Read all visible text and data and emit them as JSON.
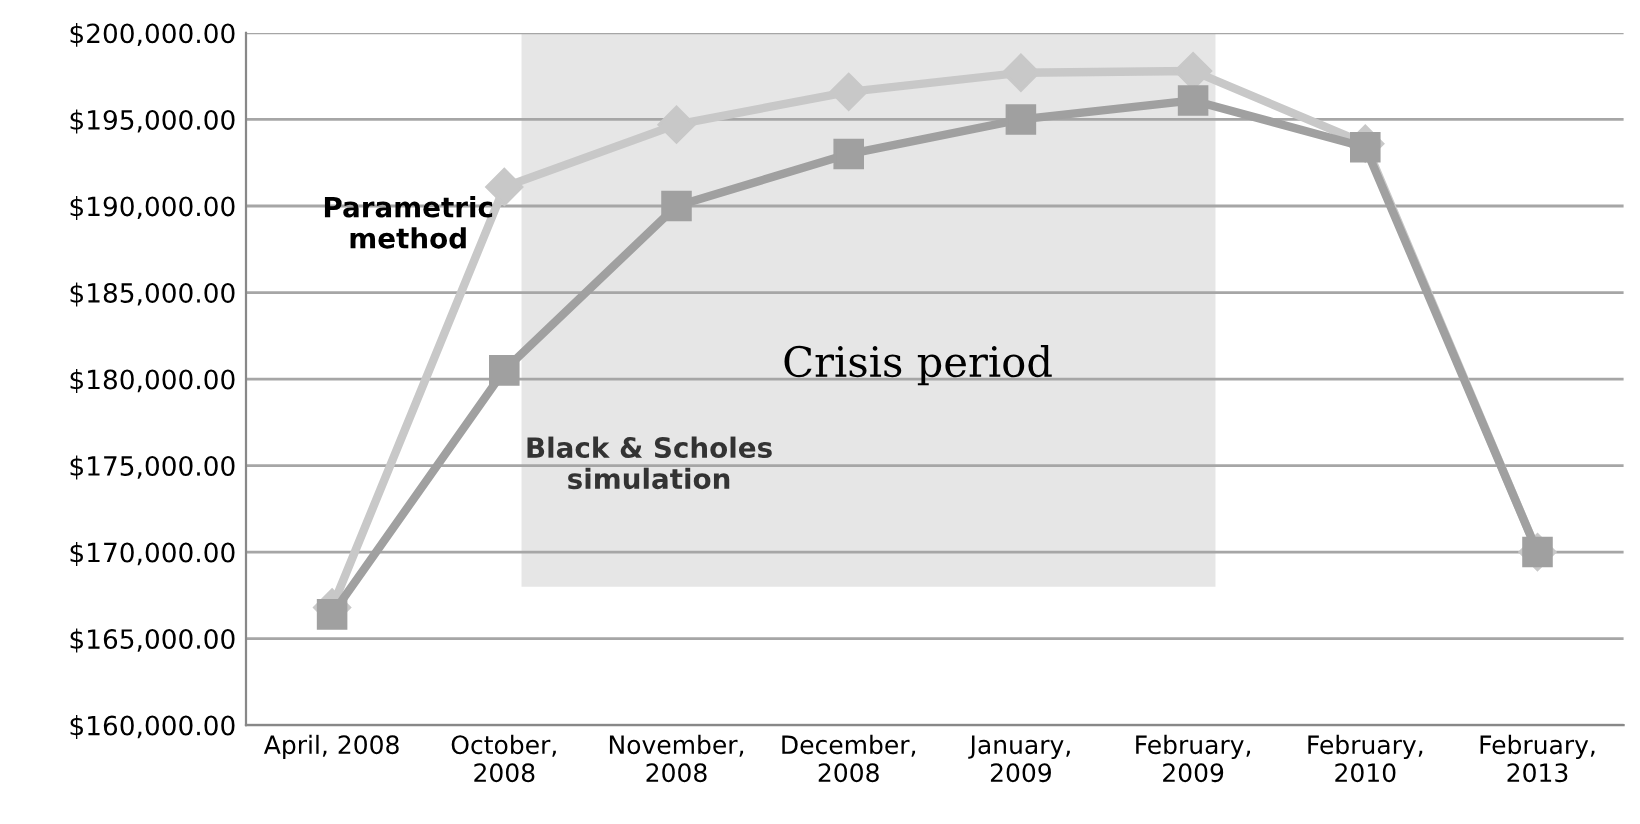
{
  "chart_data": {
    "type": "line",
    "categories": [
      "April, 2008",
      "October,\n2008",
      "November,\n2008",
      "December,\n2008",
      "January,\n2009",
      "February,\n2009",
      "February,\n2010",
      "February,\n2013"
    ],
    "series": [
      {
        "name": "Parametric method",
        "color": "#c8c8c8",
        "marker": "diamond",
        "values": [
          166800,
          191100,
          194700,
          196600,
          197700,
          197800,
          193600,
          170000
        ]
      },
      {
        "name": "Black & Scholes simulation",
        "color": "#a0a0a0",
        "marker": "square",
        "values": [
          166400,
          180500,
          190000,
          193000,
          195000,
          196100,
          193400,
          170000
        ]
      }
    ],
    "ylim": [
      160000,
      200000
    ],
    "yticks": [
      {
        "value": 160000,
        "label": "$160,000.00"
      },
      {
        "value": 165000,
        "label": "$165,000.00"
      },
      {
        "value": 170000,
        "label": "$170,000.00"
      },
      {
        "value": 175000,
        "label": "$175,000.00"
      },
      {
        "value": 180000,
        "label": "$180,000.00"
      },
      {
        "value": 185000,
        "label": "$185,000.00"
      },
      {
        "value": 190000,
        "label": "$190,000.00"
      },
      {
        "value": 195000,
        "label": "$195,000.00"
      },
      {
        "value": 200000,
        "label": "$200,000.00"
      }
    ],
    "annotations": [
      "Crisis period"
    ],
    "grid": "y",
    "legend": false,
    "line_style": "solid"
  }
}
